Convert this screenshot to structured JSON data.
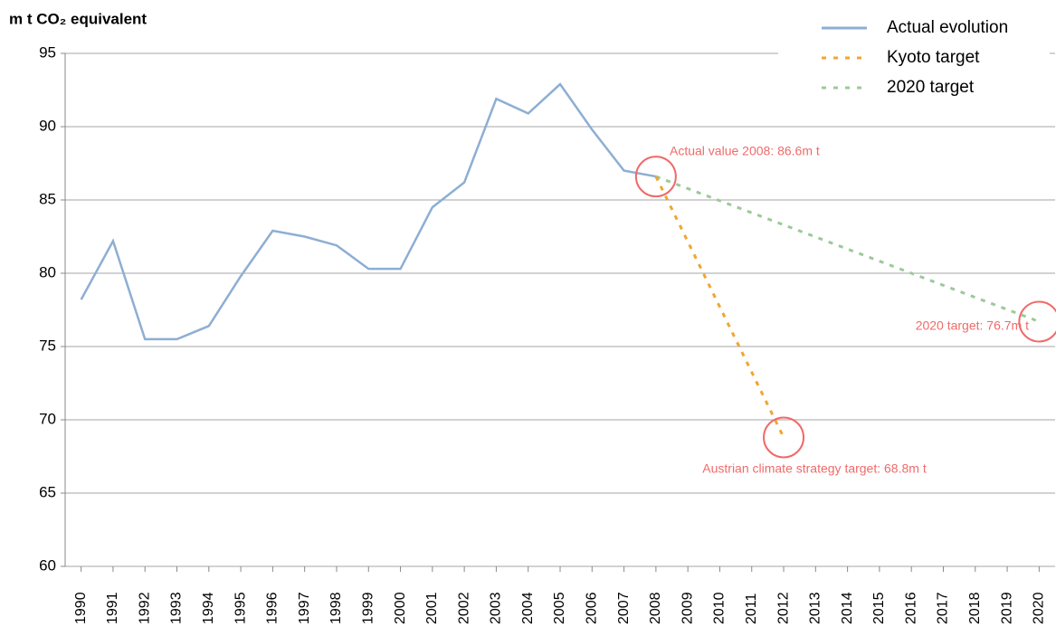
{
  "chart_data": {
    "type": "line",
    "y_label": "m t CO₂ equivalent",
    "xlim": [
      1989.5,
      2020.5
    ],
    "xticks": [
      1990,
      1991,
      1992,
      1993,
      1994,
      1995,
      1996,
      1997,
      1998,
      1999,
      2000,
      2001,
      2002,
      2003,
      2004,
      2005,
      2006,
      2007,
      2008,
      2009,
      2010,
      2011,
      2012,
      2013,
      2014,
      2015,
      2016,
      2017,
      2018,
      2019,
      2020
    ],
    "ylim": [
      60,
      95
    ],
    "yticks": [
      60,
      65,
      70,
      75,
      80,
      85,
      90,
      95
    ],
    "grid": true,
    "legend": "top-right",
    "series": [
      {
        "name": "Actual evolution",
        "color": "#8eaed3",
        "dashed": false,
        "x": [
          1990,
          1991,
          1992,
          1993,
          1994,
          1995,
          1996,
          1997,
          1998,
          1999,
          2000,
          2001,
          2002,
          2003,
          2004,
          2005,
          2006,
          2007,
          2008
        ],
        "values": [
          78.2,
          82.2,
          75.5,
          75.5,
          76.4,
          79.8,
          82.9,
          82.5,
          81.9,
          80.3,
          80.3,
          84.5,
          86.2,
          91.9,
          90.9,
          92.9,
          89.8,
          87.0,
          86.6
        ]
      },
      {
        "name": "Kyoto target",
        "color": "#f2a531",
        "dashed": true,
        "x": [
          2008,
          2012
        ],
        "values": [
          86.6,
          68.8
        ]
      },
      {
        "name": "2020 target",
        "color": "#9dc99a",
        "dashed": true,
        "x": [
          2008,
          2020
        ],
        "values": [
          86.6,
          76.7
        ]
      }
    ],
    "annotations": [
      "Actual value 2008: 86.6m t",
      "2020 target: 76.7m t",
      "Austrian climate strategy target: 68.8m t"
    ],
    "annotation_color": "#f06a6a"
  }
}
